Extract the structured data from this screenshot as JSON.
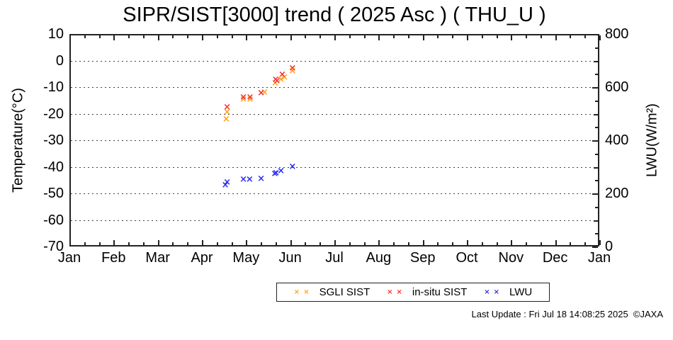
{
  "title": "SIPR/SIST[3000] trend ( 2025 Asc ) ( THU_U )",
  "footer": {
    "last_update": "Last Update : Fri Jul 18 14:08:25 2025  ©JAXA"
  },
  "chart_data": {
    "type": "scatter",
    "title": "SIPR/SIST[3000] trend ( 2025 Asc ) ( THU_U )",
    "grid": "horizontal-dotted",
    "legend_position": "bottom-center",
    "x_axis": {
      "tick_labels": [
        "Jan",
        "Feb",
        "Mar",
        "Apr",
        "May",
        "Jun",
        "Jul",
        "Aug",
        "Sep",
        "Oct",
        "Nov",
        "Dec",
        "Jan"
      ],
      "min_month": 0,
      "max_month": 12,
      "minor_ticks_per_month": 3
    },
    "y_left": {
      "label": "Temperature(°C)",
      "min": -70,
      "max": 10,
      "ticks": [
        10,
        0,
        -10,
        -20,
        -30,
        -40,
        -50,
        -60,
        -70
      ],
      "grid_at": [
        0,
        -10,
        -20,
        -30,
        -40,
        -50,
        -60
      ]
    },
    "y_right": {
      "label": "LWU(W/m²)",
      "min": 0,
      "max": 800,
      "ticks": [
        800,
        600,
        400,
        200,
        0
      ],
      "minor_step": 50
    },
    "series": [
      {
        "name": "SGLI SIST",
        "axis": "left",
        "color": "#ffa31a",
        "marker": "×",
        "points": [
          [
            3.55,
            -22.3
          ],
          [
            3.57,
            -19.6
          ],
          [
            3.94,
            -14.9
          ],
          [
            4.09,
            -14.9
          ],
          [
            4.42,
            -12.2
          ],
          [
            4.66,
            -8.7
          ],
          [
            4.79,
            -7.4
          ],
          [
            4.87,
            -6.5
          ],
          [
            5.05,
            -4.1
          ]
        ]
      },
      {
        "name": "in-situ SIST",
        "axis": "left",
        "color": "#f43131",
        "marker": "×",
        "points": [
          [
            3.57,
            -17.6
          ],
          [
            3.94,
            -13.9
          ],
          [
            4.09,
            -13.9
          ],
          [
            4.34,
            -12.5
          ],
          [
            4.67,
            -7.2
          ],
          [
            4.7,
            -7.8
          ],
          [
            4.82,
            -5.5
          ],
          [
            5.05,
            -3.0
          ]
        ]
      },
      {
        "name": "LWU",
        "axis": "right",
        "color": "#2e2ef0",
        "marker": "×",
        "points": [
          [
            3.53,
            230
          ],
          [
            3.57,
            241
          ],
          [
            3.94,
            250
          ],
          [
            4.08,
            250
          ],
          [
            4.34,
            254
          ],
          [
            4.65,
            273
          ],
          [
            4.68,
            275
          ],
          [
            4.79,
            282
          ],
          [
            5.05,
            299
          ]
        ]
      }
    ]
  }
}
